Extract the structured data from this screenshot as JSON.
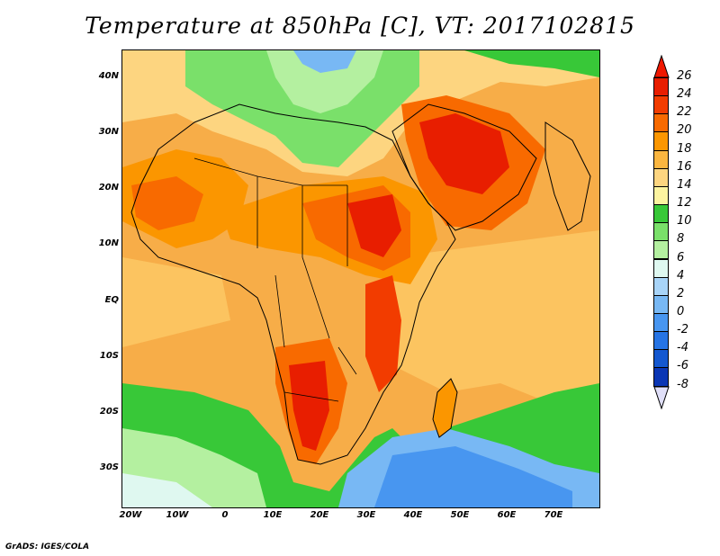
{
  "title": "Temperature at 850hPa [C], VT: 2017102815",
  "footer": "GrADS: IGES/COLA",
  "lat_labels": [
    "40N",
    "30N",
    "20N",
    "10N",
    "EQ",
    "10S",
    "20S",
    "30S"
  ],
  "lon_labels": [
    "20W",
    "10W",
    "0",
    "10E",
    "20E",
    "30E",
    "40E",
    "50E",
    "60E",
    "70E"
  ],
  "colorbar": {
    "labels": [
      "26",
      "24",
      "22",
      "20",
      "18",
      "16",
      "14",
      "12",
      "10",
      "8",
      "6",
      "4",
      "2",
      "0",
      "-2",
      "-4",
      "-6",
      "-8"
    ],
    "colors": [
      "#e81e00",
      "#f23c00",
      "#f86a00",
      "#fb9600",
      "#fbb640",
      "#fdd580",
      "#fdf4a0",
      "#38c838",
      "#7ae06a",
      "#b4f0a0",
      "#dff8f0",
      "#a8d4f8",
      "#78b8f4",
      "#4896f0",
      "#2674e4",
      "#1458d0",
      "#0a36b4",
      "#040a8c"
    ],
    "top_color": "#f01800",
    "bottom_color": "#e0dff8"
  }
}
